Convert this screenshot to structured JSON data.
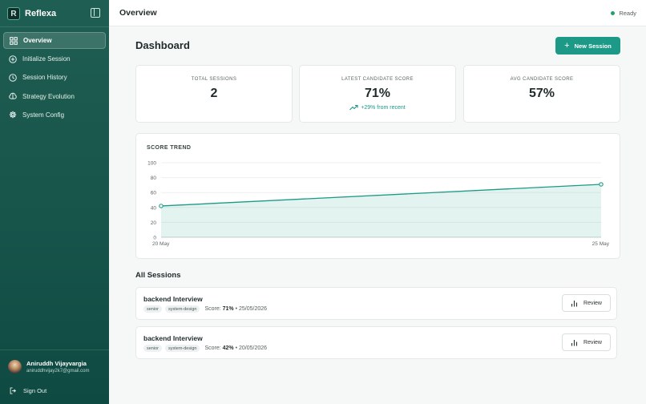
{
  "app": {
    "name": "Reflexa",
    "logo_letter": "R"
  },
  "sidebar": {
    "items": [
      {
        "label": "Overview",
        "icon": "grid-icon",
        "active": true
      },
      {
        "label": "Initialize Session",
        "icon": "plus-circle-icon"
      },
      {
        "label": "Session History",
        "icon": "clock-icon"
      },
      {
        "label": "Strategy Evolution",
        "icon": "brain-icon"
      },
      {
        "label": "System Config",
        "icon": "gear-icon"
      }
    ],
    "user": {
      "name": "Aniruddh Vijayvargia",
      "email": "aniruddhvijay2k7@gmail.com"
    },
    "signout_label": "Sign Out"
  },
  "header": {
    "title": "Overview",
    "status": "Ready"
  },
  "main": {
    "title": "Dashboard",
    "new_session_label": "New Session",
    "stats": [
      {
        "label": "TOTAL SESSIONS",
        "value": "2"
      },
      {
        "label": "LATEST CANDIDATE SCORE",
        "value": "71%",
        "delta": "+29% from recent"
      },
      {
        "label": "AVG CANDIDATE SCORE",
        "value": "57%"
      }
    ],
    "sessions_title": "All Sessions",
    "sessions": [
      {
        "name": "backend Interview",
        "tags": [
          "senior",
          "system-design"
        ],
        "score_label": "Score:",
        "score": "71%",
        "date": "25/05/2026",
        "review_label": "Review"
      },
      {
        "name": "backend Interview",
        "tags": [
          "senior",
          "system-design"
        ],
        "score_label": "Score:",
        "score": "42%",
        "date": "20/05/2026",
        "review_label": "Review"
      }
    ]
  },
  "colors": {
    "accent": "#1c9a87",
    "sidebar": "#17544a",
    "status": "#22a06b"
  },
  "chart_data": {
    "type": "area",
    "title": "SCORE TREND",
    "x": [
      "20 May",
      "25 May"
    ],
    "values": [
      42,
      71
    ],
    "yticks": [
      0,
      20,
      40,
      60,
      80,
      100
    ],
    "ylim": [
      0,
      100
    ],
    "grid": true
  }
}
